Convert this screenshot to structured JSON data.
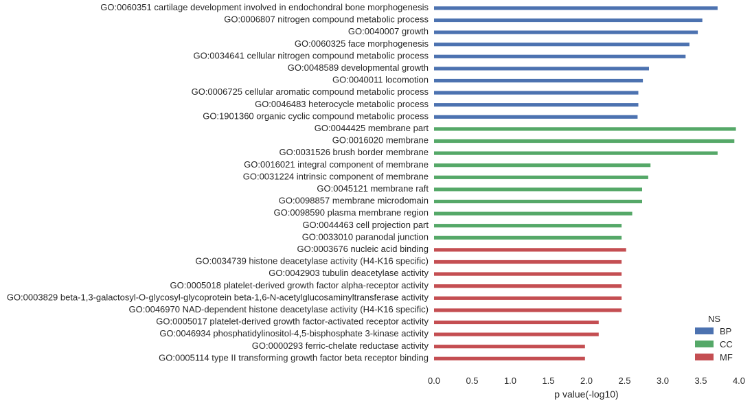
{
  "chart_data": {
    "type": "bar",
    "orientation": "horizontal",
    "xlabel": "p value(-log10)",
    "xlim": [
      0,
      4.0
    ],
    "xticks": [
      "0.0",
      "0.5",
      "1.0",
      "1.5",
      "2.0",
      "2.5",
      "3.0",
      "3.5",
      "4.0"
    ],
    "grid": false,
    "legend": {
      "title": "NS",
      "placement": "bottom-right",
      "entries": [
        {
          "name": "BP",
          "color": "#4c72b0"
        },
        {
          "name": "CC",
          "color": "#55a868"
        },
        {
          "name": "MF",
          "color": "#c44e52"
        }
      ]
    },
    "bars": [
      {
        "label": "GO:0060351 cartilage development involved in endochondral bone morphogenesis",
        "value": 3.72,
        "ns": "BP"
      },
      {
        "label": "GO:0006807 nitrogen compound metabolic process",
        "value": 3.52,
        "ns": "BP"
      },
      {
        "label": "GO:0040007 growth",
        "value": 3.46,
        "ns": "BP"
      },
      {
        "label": "GO:0060325 face morphogenesis",
        "value": 3.35,
        "ns": "BP"
      },
      {
        "label": "GO:0034641 cellular nitrogen compound metabolic process",
        "value": 3.3,
        "ns": "BP"
      },
      {
        "label": "GO:0048589 developmental growth",
        "value": 2.82,
        "ns": "BP"
      },
      {
        "label": "GO:0040011 locomotion",
        "value": 2.74,
        "ns": "BP"
      },
      {
        "label": "GO:0006725 cellular aromatic compound metabolic process",
        "value": 2.68,
        "ns": "BP"
      },
      {
        "label": "GO:0046483 heterocycle metabolic process",
        "value": 2.68,
        "ns": "BP"
      },
      {
        "label": "GO:1901360 organic cyclic compound metabolic process",
        "value": 2.67,
        "ns": "BP"
      },
      {
        "label": "GO:0044425 membrane part",
        "value": 3.96,
        "ns": "CC"
      },
      {
        "label": "GO:0016020 membrane",
        "value": 3.94,
        "ns": "CC"
      },
      {
        "label": "GO:0031526 brush border membrane",
        "value": 3.72,
        "ns": "CC"
      },
      {
        "label": "GO:0016021 integral component of membrane",
        "value": 2.84,
        "ns": "CC"
      },
      {
        "label": "GO:0031224 intrinsic component of membrane",
        "value": 2.81,
        "ns": "CC"
      },
      {
        "label": "GO:0045121 membrane raft",
        "value": 2.73,
        "ns": "CC"
      },
      {
        "label": "GO:0098857 membrane microdomain",
        "value": 2.73,
        "ns": "CC"
      },
      {
        "label": "GO:0098590 plasma membrane region",
        "value": 2.6,
        "ns": "CC"
      },
      {
        "label": "GO:0044463 cell projection part",
        "value": 2.46,
        "ns": "CC"
      },
      {
        "label": "GO:0033010 paranodal junction",
        "value": 2.46,
        "ns": "CC"
      },
      {
        "label": "GO:0003676 nucleic acid binding",
        "value": 2.52,
        "ns": "MF"
      },
      {
        "label": "GO:0034739 histone deacetylase activity (H4-K16 specific)",
        "value": 2.46,
        "ns": "MF"
      },
      {
        "label": "GO:0042903 tubulin deacetylase activity",
        "value": 2.46,
        "ns": "MF"
      },
      {
        "label": "GO:0005018 platelet-derived growth factor alpha-receptor activity",
        "value": 2.46,
        "ns": "MF"
      },
      {
        "label": "GO:0003829 beta-1,3-galactosyl-O-glycosyl-glycoprotein beta-1,6-N-acetylglucosaminyltransferase activity",
        "value": 2.46,
        "ns": "MF"
      },
      {
        "label": "GO:0046970 NAD-dependent histone deacetylase activity (H4-K16 specific)",
        "value": 2.46,
        "ns": "MF"
      },
      {
        "label": "GO:0005017 platelet-derived growth factor-activated receptor activity",
        "value": 2.16,
        "ns": "MF"
      },
      {
        "label": "GO:0046934 phosphatidylinositol-4,5-bisphosphate 3-kinase activity",
        "value": 2.16,
        "ns": "MF"
      },
      {
        "label": "GO:0000293 ferric-chelate reductase activity",
        "value": 1.98,
        "ns": "MF"
      },
      {
        "label": "GO:0005114 type II transforming growth factor beta receptor binding",
        "value": 1.98,
        "ns": "MF"
      }
    ]
  }
}
